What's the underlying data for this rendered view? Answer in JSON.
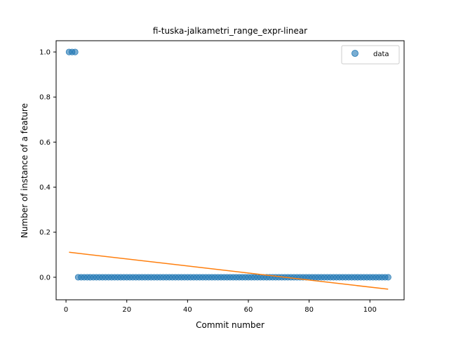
{
  "chart_data": {
    "type": "scatter",
    "title": "fi-tuska-jalkametri_range_expr-linear",
    "xlabel": "Commit number",
    "ylabel": "Number of instance of a feature",
    "xlim": [
      -3.25,
      111.25
    ],
    "ylim": [
      -0.1,
      1.05
    ],
    "xticks": [
      0,
      20,
      40,
      60,
      80,
      100
    ],
    "yticks": [
      0.0,
      0.2,
      0.4,
      0.6,
      0.8,
      1.0
    ],
    "xtick_labels": [
      "0",
      "20",
      "40",
      "60",
      "80",
      "100"
    ],
    "ytick_labels": [
      "0.0",
      "0.2",
      "0.4",
      "0.6",
      "0.8",
      "1.0"
    ],
    "grid": false,
    "legend": {
      "position": "top-right",
      "entries": [
        "data"
      ]
    },
    "series": [
      {
        "name": "data",
        "kind": "scatter",
        "color": "#1f77b4",
        "x": [
          1,
          2,
          3,
          4,
          5,
          6,
          7,
          8,
          9,
          10,
          11,
          12,
          13,
          14,
          15,
          16,
          17,
          18,
          19,
          20,
          21,
          22,
          23,
          24,
          25,
          26,
          27,
          28,
          29,
          30,
          31,
          32,
          33,
          34,
          35,
          36,
          37,
          38,
          39,
          40,
          41,
          42,
          43,
          44,
          45,
          46,
          47,
          48,
          49,
          50,
          51,
          52,
          53,
          54,
          55,
          56,
          57,
          58,
          59,
          60,
          61,
          62,
          63,
          64,
          65,
          66,
          67,
          68,
          69,
          70,
          71,
          72,
          73,
          74,
          75,
          76,
          77,
          78,
          79,
          80,
          81,
          82,
          83,
          84,
          85,
          86,
          87,
          88,
          89,
          90,
          91,
          92,
          93,
          94,
          95,
          96,
          97,
          98,
          99,
          100,
          101,
          102,
          103,
          104,
          105,
          106
        ],
        "y": [
          1,
          1,
          1,
          0,
          0,
          0,
          0,
          0,
          0,
          0,
          0,
          0,
          0,
          0,
          0,
          0,
          0,
          0,
          0,
          0,
          0,
          0,
          0,
          0,
          0,
          0,
          0,
          0,
          0,
          0,
          0,
          0,
          0,
          0,
          0,
          0,
          0,
          0,
          0,
          0,
          0,
          0,
          0,
          0,
          0,
          0,
          0,
          0,
          0,
          0,
          0,
          0,
          0,
          0,
          0,
          0,
          0,
          0,
          0,
          0,
          0,
          0,
          0,
          0,
          0,
          0,
          0,
          0,
          0,
          0,
          0,
          0,
          0,
          0,
          0,
          0,
          0,
          0,
          0,
          0,
          0,
          0,
          0,
          0,
          0,
          0,
          0,
          0,
          0,
          0,
          0,
          0,
          0,
          0,
          0,
          0,
          0,
          0,
          0,
          0,
          0,
          0,
          0,
          0,
          0,
          0
        ]
      },
      {
        "kind": "line",
        "color": "#ff7f0e",
        "x": [
          1,
          106
        ],
        "y": [
          0.111,
          -0.053
        ]
      }
    ]
  }
}
